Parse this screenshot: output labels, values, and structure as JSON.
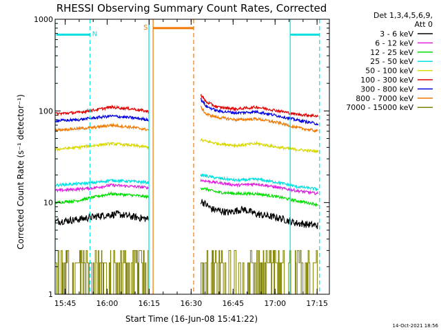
{
  "chart_data": {
    "type": "line",
    "title": "RHESSI Observing Summary Count Rates, Corrected",
    "xlabel": "Start Time (16-Jun-08 15:41:22)",
    "ylabel": "Corrected Count Rate (s⁻¹ detector⁻¹)",
    "x_unit": "minutes after 15:41:22",
    "xlim": [
      0,
      98
    ],
    "ylim": [
      1,
      1000
    ],
    "yscale": "log",
    "x_ticks": [
      {
        "value": 3.6,
        "label": "15:45"
      },
      {
        "value": 18.6,
        "label": "16:00"
      },
      {
        "value": 33.6,
        "label": "16:15"
      },
      {
        "value": 48.6,
        "label": "16:30"
      },
      {
        "value": 63.6,
        "label": "16:45"
      },
      {
        "value": 78.6,
        "label": "17:00"
      },
      {
        "value": 93.6,
        "label": "17:15"
      }
    ],
    "y_ticks": [
      {
        "value": 1,
        "label": "1"
      },
      {
        "value": 10,
        "label": "10"
      },
      {
        "value": 100,
        "label": "100"
      },
      {
        "value": 1000,
        "label": "1000"
      }
    ],
    "legend_header": [
      "Det 1,3,4,5,6,9,",
      "Att 0"
    ],
    "legend_placement": "right",
    "series": [
      {
        "name": "3 - 6 keV",
        "color": "#000000",
        "segments": [
          {
            "x": [
              0,
              7,
              14,
              16,
              22,
              28,
              33.5
            ],
            "y": [
              6.2,
              6.5,
              7.0,
              7.2,
              7.5,
              7.0,
              6.6
            ]
          },
          {
            "x": [
              52,
              56,
              62,
              67,
              72,
              80,
              86,
              94
            ],
            "y": [
              10.5,
              8.5,
              7.8,
              8.5,
              7.5,
              6.8,
              6.0,
              5.6
            ]
          }
        ]
      },
      {
        "name": "6 - 12 keV",
        "color": "#e020e0",
        "segments": [
          {
            "x": [
              0,
              8,
              14,
              20,
              28,
              33.5
            ],
            "y": [
              13.5,
              14.0,
              14.5,
              15.5,
              15.0,
              14.5
            ]
          },
          {
            "x": [
              52,
              58,
              65,
              72,
              80,
              86,
              94
            ],
            "y": [
              17.5,
              16.5,
              15.5,
              16.0,
              14.5,
              13.5,
              12.5
            ]
          }
        ]
      },
      {
        "name": "12 - 25 keV",
        "color": "#00e000",
        "segments": [
          {
            "x": [
              0,
              8,
              14,
              20,
              28,
              33.5
            ],
            "y": [
              10.0,
              10.5,
              11.5,
              12.5,
              12.0,
              11.5
            ]
          },
          {
            "x": [
              52,
              58,
              65,
              72,
              80,
              86,
              94
            ],
            "y": [
              14.5,
              13.0,
              12.5,
              12.5,
              11.5,
              10.5,
              9.5
            ]
          }
        ]
      },
      {
        "name": "25 - 50 keV",
        "color": "#00e0e0",
        "segments": [
          {
            "x": [
              0,
              8,
              14,
              20,
              28,
              33.5
            ],
            "y": [
              15.5,
              16.0,
              16.5,
              17.5,
              17.0,
              16.5
            ]
          },
          {
            "x": [
              52,
              58,
              65,
              72,
              80,
              86,
              94
            ],
            "y": [
              20.0,
              18.5,
              17.5,
              18.0,
              16.5,
              15.0,
              14.0
            ]
          }
        ]
      },
      {
        "name": "50 - 100 keV",
        "color": "#d8d800",
        "segments": [
          {
            "x": [
              0,
              8,
              14,
              20,
              28,
              33.5
            ],
            "y": [
              38,
              40,
              42,
              44,
              42,
              40
            ]
          },
          {
            "x": [
              52,
              58,
              65,
              72,
              80,
              86,
              94
            ],
            "y": [
              48,
              44,
              42,
              44,
              40,
              38,
              36
            ]
          }
        ]
      },
      {
        "name": "100 - 300 keV",
        "color": "#e00000",
        "segments": [
          {
            "x": [
              0,
              8,
              14,
              20,
              28,
              33.5
            ],
            "y": [
              93,
              96,
              102,
              110,
              105,
              98
            ]
          },
          {
            "x": [
              52,
              54,
              58,
              65,
              72,
              80,
              86,
              94
            ],
            "y": [
              150,
              125,
              110,
              105,
              110,
              100,
              92,
              88
            ]
          }
        ]
      },
      {
        "name": "300 - 800 keV",
        "color": "#0000e0",
        "segments": [
          {
            "x": [
              0,
              8,
              14,
              20,
              28,
              33.5
            ],
            "y": [
              78,
              80,
              84,
              88,
              84,
              80
            ]
          },
          {
            "x": [
              52,
              54,
              58,
              65,
              72,
              80,
              86,
              94
            ],
            "y": [
              135,
              112,
              100,
              95,
              98,
              88,
              80,
              72
            ]
          }
        ]
      },
      {
        "name": "800 - 7000 keV",
        "color": "#f07800",
        "segments": [
          {
            "x": [
              0,
              8,
              14,
              20,
              28,
              33.5
            ],
            "y": [
              62,
              64,
              66,
              70,
              66,
              62
            ]
          },
          {
            "x": [
              52,
              54,
              58,
              65,
              72,
              80,
              86,
              94
            ],
            "y": [
              110,
              92,
              85,
              80,
              82,
              74,
              66,
              60
            ]
          }
        ]
      },
      {
        "name": "7000 - 15000 keV",
        "color": "#808000",
        "segments": [
          {
            "x": [
              0,
              33.5
            ],
            "y": [
              1,
              1
            ]
          },
          {
            "x": [
              52,
              94
            ],
            "y": [
              1,
              1
            ]
          }
        ]
      }
    ],
    "overlays": [
      {
        "label": "N",
        "color": "#00e0e0",
        "y": 680,
        "bars": [
          [
            0.5,
            12.5
          ],
          [
            84,
            94.5
          ]
        ],
        "solid_x": [
          0,
          33.5,
          84
        ],
        "dashed_x": [
          12.5,
          94.5
        ]
      },
      {
        "label": "S",
        "color": "#f07800",
        "y": 800,
        "bars": [
          [
            35,
            49.5
          ]
        ],
        "solid_x": [
          35
        ],
        "dashed_x": [
          49.5
        ]
      }
    ],
    "timestamp": "14-Oct-2021 18:56"
  }
}
